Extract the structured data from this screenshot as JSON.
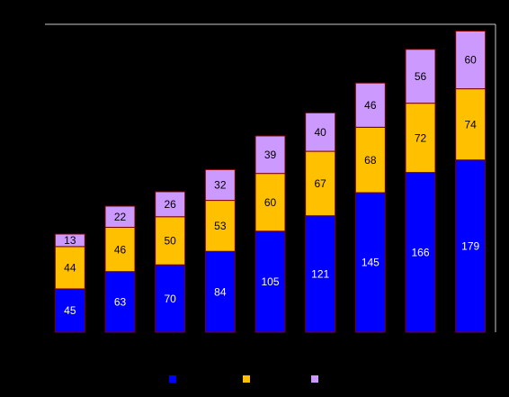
{
  "chart_data": {
    "type": "bar",
    "stacked": true,
    "categories": [
      "",
      "",
      "",
      "",
      "",
      "",
      "",
      "",
      ""
    ],
    "series": [
      {
        "values": [
          45,
          63,
          70,
          84,
          105,
          121,
          145,
          166,
          179
        ],
        "color": "#0000ff",
        "label_color": "#ffffff"
      },
      {
        "values": [
          44,
          46,
          50,
          53,
          60,
          67,
          68,
          72,
          74
        ],
        "color": "#ffc000",
        "label_color": "#000000"
      },
      {
        "values": [
          13,
          22,
          26,
          32,
          39,
          40,
          46,
          56,
          60
        ],
        "color": "#cc99ff",
        "label_color": "#000000"
      }
    ],
    "ylim": [
      0,
      320
    ],
    "grid": false,
    "legend": "bottom",
    "title": "",
    "xlabel": "",
    "ylabel": ""
  }
}
